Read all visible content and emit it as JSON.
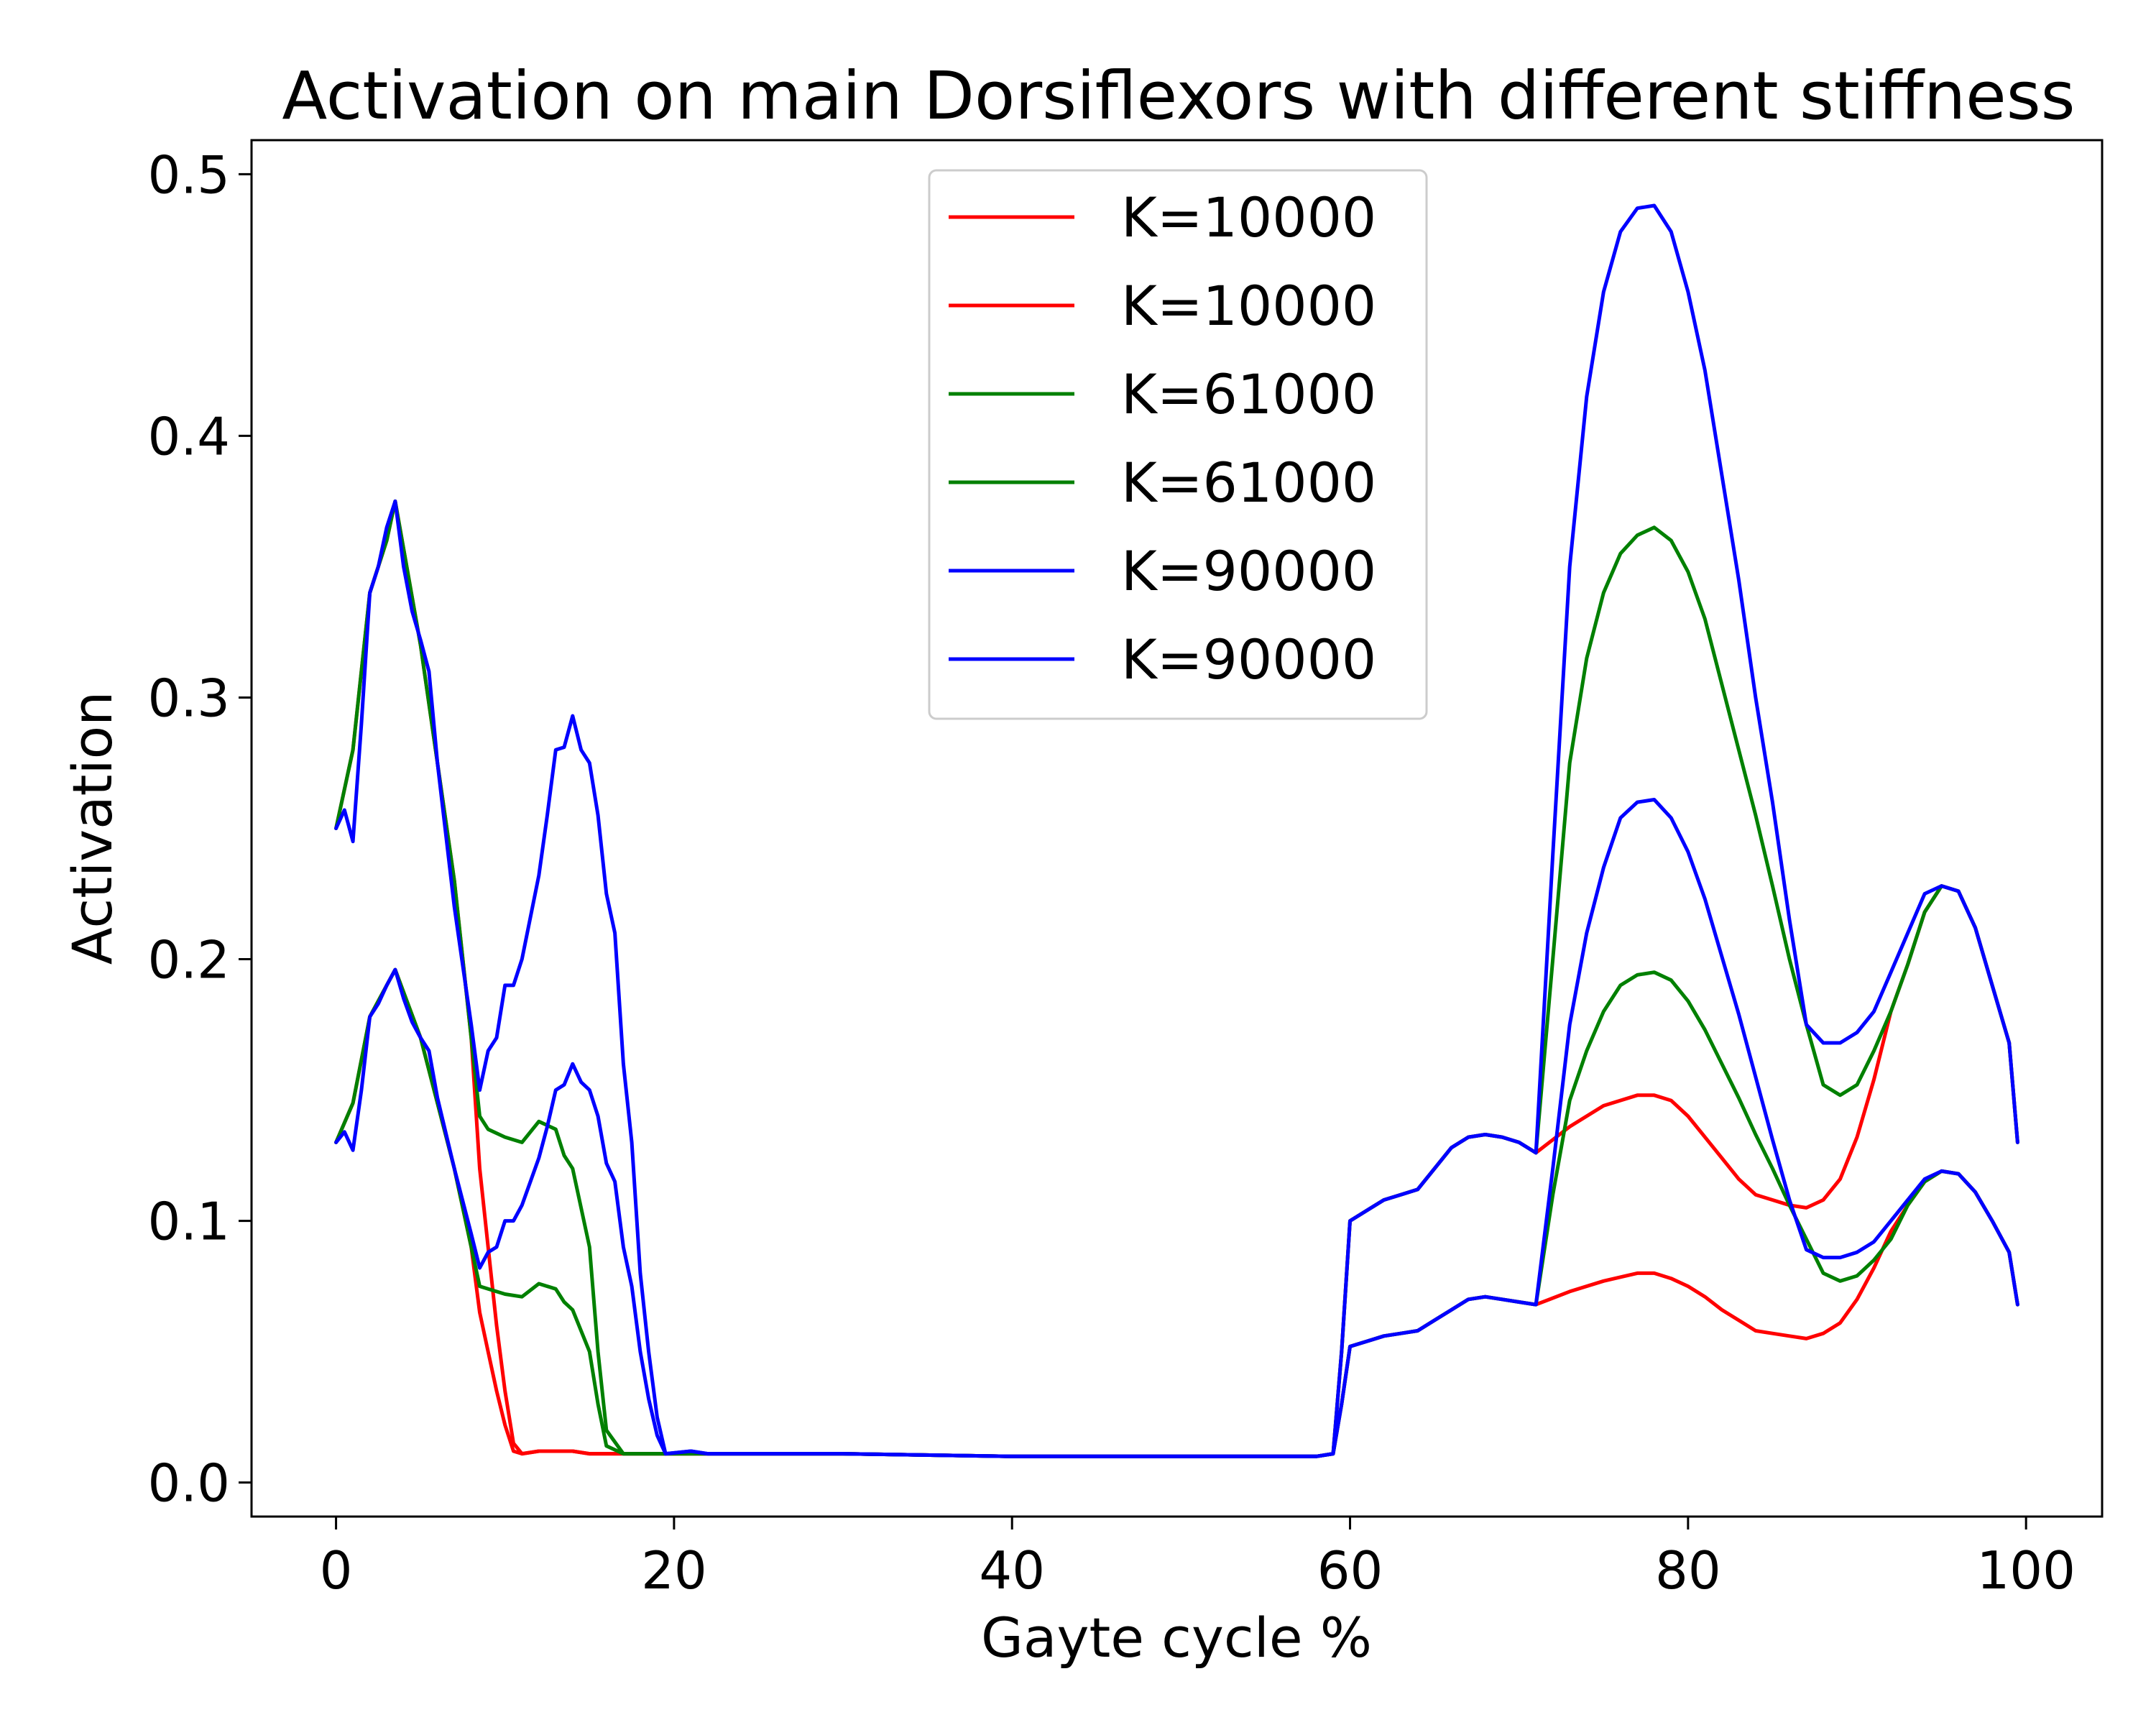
{
  "chart_data": {
    "type": "line",
    "title": "Activation on main Dorsiflexors with different stiffness",
    "xlabel": "Gayte cycle %",
    "ylabel": "Activation",
    "xlim": [
      -5,
      104.5
    ],
    "ylim": [
      -0.013,
      0.513
    ],
    "xticks": [
      0,
      20,
      40,
      60,
      80,
      100
    ],
    "yticks": [
      0.0,
      0.1,
      0.2,
      0.3,
      0.4,
      0.5
    ],
    "xtick_labels": [
      "0",
      "20",
      "40",
      "60",
      "80",
      "100"
    ],
    "ytick_labels": [
      "0.0",
      "0.1",
      "0.2",
      "0.3",
      "0.4",
      "0.5"
    ],
    "grid": false,
    "legend_position": "top-center",
    "legend": [
      "K=10000",
      "K=10000",
      "K=61000",
      "K=61000",
      "K=90000",
      "K=90000"
    ],
    "colors": {
      "k10000": "#ff0000",
      "k61000": "#008000",
      "k90000": "#0000ff",
      "legend_border": "#cccccc"
    },
    "series": [
      {
        "name": "K=10000",
        "color": "#ff0000",
        "x": [
          0,
          1,
          2,
          3,
          3.5,
          5,
          6,
          7,
          8,
          8.5,
          9,
          9.5,
          10,
          10.5,
          11,
          12,
          13,
          14,
          15,
          16,
          18,
          19.5,
          22,
          30,
          40,
          50,
          58,
          59,
          59.5,
          60,
          61,
          62,
          63,
          64,
          65,
          66,
          67,
          68,
          69,
          70,
          71,
          73,
          75,
          77,
          78,
          79,
          80,
          81,
          82,
          83,
          84,
          85,
          86,
          87,
          88,
          89,
          90,
          91,
          92,
          93,
          94,
          95,
          96,
          97,
          98,
          99,
          99.5
        ],
        "values": [
          0.25,
          0.28,
          0.34,
          0.36,
          0.375,
          0.32,
          0.275,
          0.23,
          0.17,
          0.12,
          0.09,
          0.06,
          0.035,
          0.015,
          0.011,
          0.012,
          0.012,
          0.012,
          0.011,
          0.011,
          0.011,
          0.011,
          0.011,
          0.011,
          0.01,
          0.01,
          0.01,
          0.011,
          0.05,
          0.1,
          0.104,
          0.108,
          0.11,
          0.112,
          0.12,
          0.128,
          0.132,
          0.133,
          0.132,
          0.13,
          0.126,
          0.136,
          0.144,
          0.148,
          0.148,
          0.146,
          0.14,
          0.132,
          0.124,
          0.116,
          0.11,
          0.108,
          0.106,
          0.105,
          0.108,
          0.116,
          0.132,
          0.154,
          0.18,
          0.198,
          0.218,
          0.228,
          0.226,
          0.212,
          0.19,
          0.168,
          0.13
        ]
      },
      {
        "name": "K=10000",
        "color": "#ff0000",
        "x": [
          0,
          1,
          2,
          3,
          3.5,
          5,
          6,
          7,
          8,
          8.5,
          9,
          9.5,
          10,
          10.5,
          11,
          12,
          13,
          14,
          15,
          16,
          18,
          19.5,
          22,
          30,
          40,
          50,
          58,
          59,
          59.5,
          60,
          61,
          62,
          63,
          64,
          65,
          66,
          67,
          68,
          69,
          70,
          71,
          73,
          75,
          77,
          78,
          79,
          80,
          81,
          82,
          83,
          84,
          85,
          86,
          87,
          88,
          89,
          90,
          91,
          92,
          93,
          94,
          95,
          96,
          97,
          98,
          99,
          99.5
        ],
        "values": [
          0.13,
          0.145,
          0.178,
          0.19,
          0.196,
          0.17,
          0.145,
          0.12,
          0.09,
          0.065,
          0.05,
          0.035,
          0.022,
          0.012,
          0.011,
          0.012,
          0.012,
          0.012,
          0.011,
          0.011,
          0.011,
          0.011,
          0.011,
          0.011,
          0.01,
          0.01,
          0.01,
          0.011,
          0.03,
          0.052,
          0.054,
          0.056,
          0.057,
          0.058,
          0.062,
          0.066,
          0.07,
          0.071,
          0.07,
          0.069,
          0.068,
          0.073,
          0.077,
          0.08,
          0.08,
          0.078,
          0.075,
          0.071,
          0.066,
          0.062,
          0.058,
          0.057,
          0.056,
          0.055,
          0.057,
          0.061,
          0.07,
          0.082,
          0.096,
          0.106,
          0.115,
          0.119,
          0.118,
          0.111,
          0.1,
          0.088,
          0.068
        ]
      },
      {
        "name": "K=61000",
        "color": "#008000",
        "x": [
          0,
          1,
          2,
          3,
          3.5,
          5,
          6,
          7,
          8,
          8.5,
          9,
          10,
          11,
          12,
          13,
          13.5,
          14,
          15,
          15.5,
          16,
          17,
          18,
          19.5,
          22,
          30,
          40,
          50,
          58,
          59,
          59.5,
          60,
          61,
          62,
          63,
          64,
          65,
          66,
          67,
          68,
          69,
          70,
          71,
          72,
          73,
          74,
          75,
          76,
          77,
          78,
          79,
          80,
          81,
          82,
          83,
          84,
          85,
          86,
          87,
          88,
          89,
          90,
          91,
          92,
          93,
          94,
          95,
          96,
          97,
          98,
          99,
          99.5
        ],
        "values": [
          0.25,
          0.28,
          0.34,
          0.36,
          0.375,
          0.32,
          0.275,
          0.23,
          0.17,
          0.14,
          0.135,
          0.132,
          0.13,
          0.138,
          0.135,
          0.125,
          0.12,
          0.09,
          0.05,
          0.02,
          0.011,
          0.011,
          0.011,
          0.011,
          0.011,
          0.01,
          0.01,
          0.01,
          0.011,
          0.05,
          0.1,
          0.104,
          0.108,
          0.11,
          0.112,
          0.12,
          0.128,
          0.132,
          0.133,
          0.132,
          0.13,
          0.126,
          0.2,
          0.275,
          0.315,
          0.34,
          0.355,
          0.362,
          0.365,
          0.36,
          0.348,
          0.33,
          0.305,
          0.28,
          0.255,
          0.228,
          0.2,
          0.175,
          0.152,
          0.148,
          0.152,
          0.165,
          0.18,
          0.198,
          0.218,
          0.228,
          0.226,
          0.212,
          0.19,
          0.168,
          0.13
        ]
      },
      {
        "name": "K=61000",
        "color": "#008000",
        "x": [
          0,
          1,
          2,
          3,
          3.5,
          5,
          6,
          7,
          8,
          8.5,
          9,
          10,
          11,
          12,
          13,
          13.5,
          14,
          15,
          15.5,
          16,
          17,
          18,
          19.5,
          22,
          30,
          40,
          50,
          58,
          59,
          59.5,
          60,
          61,
          62,
          63,
          64,
          65,
          66,
          67,
          68,
          69,
          70,
          71,
          72,
          73,
          74,
          75,
          76,
          77,
          78,
          79,
          80,
          81,
          82,
          83,
          84,
          85,
          86,
          87,
          88,
          89,
          90,
          91,
          92,
          93,
          94,
          95,
          96,
          97,
          98,
          99,
          99.5
        ],
        "values": [
          0.13,
          0.145,
          0.178,
          0.19,
          0.196,
          0.17,
          0.145,
          0.12,
          0.09,
          0.075,
          0.074,
          0.072,
          0.071,
          0.076,
          0.074,
          0.069,
          0.066,
          0.05,
          0.03,
          0.014,
          0.011,
          0.011,
          0.011,
          0.011,
          0.011,
          0.01,
          0.01,
          0.01,
          0.011,
          0.03,
          0.052,
          0.054,
          0.056,
          0.057,
          0.058,
          0.062,
          0.066,
          0.07,
          0.071,
          0.07,
          0.069,
          0.068,
          0.11,
          0.146,
          0.165,
          0.18,
          0.19,
          0.194,
          0.195,
          0.192,
          0.184,
          0.173,
          0.16,
          0.147,
          0.133,
          0.12,
          0.106,
          0.093,
          0.08,
          0.077,
          0.079,
          0.085,
          0.093,
          0.106,
          0.115,
          0.119,
          0.118,
          0.111,
          0.1,
          0.088,
          0.068
        ]
      },
      {
        "name": "K=90000",
        "color": "#0000ff",
        "x": [
          0,
          0.5,
          1,
          1.5,
          2,
          2.5,
          3,
          3.5,
          4,
          4.5,
          5,
          5.5,
          6,
          7,
          8,
          8.5,
          9,
          9.5,
          10,
          10.5,
          11,
          12,
          12.5,
          13,
          13.5,
          14,
          14.5,
          15,
          15.5,
          16,
          16.5,
          17,
          17.5,
          18,
          18.5,
          19,
          19.5,
          21,
          22,
          30,
          40,
          50,
          58,
          59,
          59.5,
          60,
          61,
          62,
          63,
          64,
          65,
          66,
          67,
          68,
          69,
          70,
          71,
          72,
          73,
          74,
          75,
          76,
          77,
          78,
          79,
          80,
          81,
          82,
          83,
          84,
          85,
          86,
          87,
          88,
          89,
          90,
          91,
          92,
          93,
          94,
          95,
          96,
          97,
          98,
          99,
          99.5
        ],
        "values": [
          0.25,
          0.257,
          0.245,
          0.29,
          0.34,
          0.35,
          0.365,
          0.375,
          0.35,
          0.333,
          0.322,
          0.31,
          0.275,
          0.22,
          0.175,
          0.15,
          0.165,
          0.17,
          0.19,
          0.19,
          0.2,
          0.232,
          0.255,
          0.28,
          0.281,
          0.293,
          0.28,
          0.275,
          0.255,
          0.225,
          0.21,
          0.16,
          0.13,
          0.08,
          0.05,
          0.025,
          0.011,
          0.012,
          0.011,
          0.011,
          0.01,
          0.01,
          0.01,
          0.011,
          0.05,
          0.1,
          0.104,
          0.108,
          0.11,
          0.112,
          0.12,
          0.128,
          0.132,
          0.133,
          0.132,
          0.13,
          0.126,
          0.24,
          0.35,
          0.415,
          0.455,
          0.478,
          0.487,
          0.488,
          0.478,
          0.455,
          0.425,
          0.385,
          0.345,
          0.3,
          0.26,
          0.215,
          0.175,
          0.168,
          0.168,
          0.172,
          0.18,
          0.195,
          0.21,
          0.225,
          0.228,
          0.226,
          0.212,
          0.19,
          0.168,
          0.13
        ]
      },
      {
        "name": "K=90000",
        "color": "#0000ff",
        "x": [
          0,
          0.5,
          1,
          1.5,
          2,
          2.5,
          3,
          3.5,
          4,
          4.5,
          5,
          5.5,
          6,
          7,
          8,
          8.5,
          9,
          9.5,
          10,
          10.5,
          11,
          12,
          12.5,
          13,
          13.5,
          14,
          14.5,
          15,
          15.5,
          16,
          16.5,
          17,
          17.5,
          18,
          18.5,
          19,
          19.5,
          21,
          22,
          30,
          40,
          50,
          58,
          59,
          59.5,
          60,
          61,
          62,
          63,
          64,
          65,
          66,
          67,
          68,
          69,
          70,
          71,
          72,
          73,
          74,
          75,
          76,
          77,
          78,
          79,
          80,
          81,
          82,
          83,
          84,
          85,
          86,
          87,
          88,
          89,
          90,
          91,
          92,
          93,
          94,
          95,
          96,
          97,
          98,
          99,
          99.5
        ],
        "values": [
          0.13,
          0.134,
          0.127,
          0.15,
          0.178,
          0.183,
          0.19,
          0.196,
          0.185,
          0.176,
          0.17,
          0.165,
          0.147,
          0.12,
          0.095,
          0.082,
          0.088,
          0.09,
          0.1,
          0.1,
          0.106,
          0.124,
          0.136,
          0.15,
          0.152,
          0.16,
          0.153,
          0.15,
          0.14,
          0.122,
          0.115,
          0.09,
          0.075,
          0.05,
          0.032,
          0.018,
          0.011,
          0.012,
          0.011,
          0.011,
          0.01,
          0.01,
          0.01,
          0.011,
          0.03,
          0.052,
          0.054,
          0.056,
          0.057,
          0.058,
          0.062,
          0.066,
          0.07,
          0.071,
          0.07,
          0.069,
          0.068,
          0.12,
          0.175,
          0.21,
          0.235,
          0.254,
          0.26,
          0.261,
          0.254,
          0.241,
          0.223,
          0.201,
          0.179,
          0.155,
          0.131,
          0.108,
          0.089,
          0.086,
          0.086,
          0.088,
          0.092,
          0.1,
          0.108,
          0.116,
          0.119,
          0.118,
          0.111,
          0.1,
          0.088,
          0.068
        ]
      }
    ]
  }
}
